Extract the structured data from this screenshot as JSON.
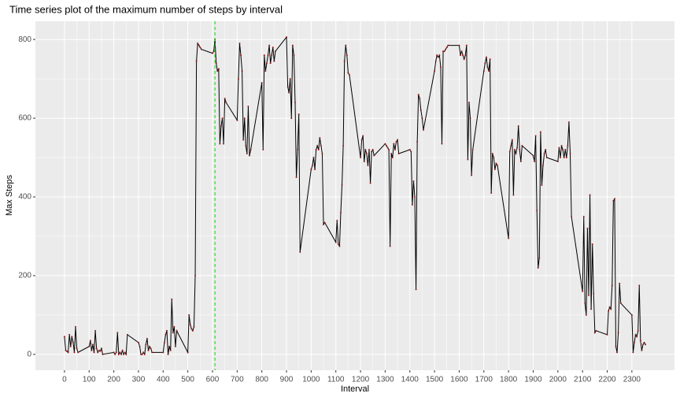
{
  "chart_data": {
    "type": "line",
    "title": "Time series plot of the maximum number of steps by interval",
    "x_label": "Interval",
    "y_label": "Max Steps",
    "x": [
      0,
      5,
      10,
      15,
      20,
      25,
      30,
      35,
      40,
      45,
      50,
      55,
      100,
      105,
      110,
      115,
      120,
      125,
      130,
      135,
      140,
      145,
      150,
      155,
      200,
      205,
      210,
      215,
      220,
      225,
      230,
      235,
      240,
      245,
      250,
      255,
      300,
      305,
      310,
      315,
      320,
      325,
      330,
      335,
      340,
      345,
      350,
      355,
      400,
      405,
      410,
      415,
      420,
      425,
      430,
      435,
      440,
      445,
      450,
      455,
      500,
      505,
      510,
      515,
      520,
      525,
      530,
      535,
      540,
      545,
      550,
      555,
      600,
      605,
      610,
      615,
      620,
      625,
      630,
      635,
      640,
      645,
      650,
      655,
      700,
      705,
      710,
      715,
      720,
      725,
      730,
      735,
      740,
      745,
      750,
      755,
      800,
      805,
      810,
      815,
      820,
      825,
      830,
      835,
      840,
      845,
      850,
      855,
      900,
      905,
      910,
      915,
      920,
      925,
      930,
      935,
      940,
      945,
      950,
      955,
      1000,
      1005,
      1010,
      1015,
      1020,
      1025,
      1030,
      1035,
      1040,
      1045,
      1050,
      1055,
      1100,
      1105,
      1110,
      1115,
      1120,
      1125,
      1130,
      1135,
      1140,
      1145,
      1150,
      1155,
      1200,
      1205,
      1210,
      1215,
      1220,
      1225,
      1230,
      1235,
      1240,
      1245,
      1250,
      1255,
      1300,
      1305,
      1310,
      1315,
      1320,
      1325,
      1330,
      1335,
      1340,
      1345,
      1350,
      1355,
      1400,
      1405,
      1410,
      1415,
      1420,
      1425,
      1430,
      1435,
      1440,
      1445,
      1450,
      1455,
      1500,
      1505,
      1510,
      1515,
      1520,
      1525,
      1530,
      1535,
      1540,
      1545,
      1550,
      1555,
      1600,
      1605,
      1610,
      1615,
      1620,
      1625,
      1630,
      1635,
      1640,
      1645,
      1650,
      1655,
      1700,
      1705,
      1710,
      1715,
      1720,
      1725,
      1730,
      1735,
      1740,
      1745,
      1750,
      1755,
      1800,
      1805,
      1810,
      1815,
      1820,
      1825,
      1830,
      1835,
      1840,
      1845,
      1850,
      1855,
      1900,
      1905,
      1910,
      1915,
      1920,
      1925,
      1930,
      1935,
      1940,
      1945,
      1950,
      1955,
      2000,
      2005,
      2010,
      2015,
      2020,
      2025,
      2030,
      2035,
      2040,
      2045,
      2050,
      2055,
      2100,
      2105,
      2110,
      2115,
      2120,
      2125,
      2130,
      2135,
      2140,
      2145,
      2150,
      2155,
      2200,
      2205,
      2210,
      2215,
      2220,
      2225,
      2230,
      2235,
      2240,
      2245,
      2250,
      2255,
      2300,
      2305,
      2310,
      2315,
      2320,
      2325,
      2330,
      2335,
      2340,
      2345,
      2350,
      2355
    ],
    "values": [
      45,
      10,
      8,
      5,
      50,
      20,
      45,
      30,
      5,
      70,
      15,
      5,
      20,
      35,
      10,
      25,
      5,
      60,
      15,
      5,
      10,
      8,
      15,
      0,
      5,
      0,
      5,
      55,
      0,
      5,
      0,
      10,
      0,
      5,
      0,
      50,
      30,
      20,
      0,
      0,
      5,
      0,
      25,
      40,
      10,
      20,
      15,
      5,
      5,
      30,
      50,
      60,
      0,
      20,
      10,
      140,
      55,
      70,
      20,
      60,
      5,
      100,
      75,
      65,
      60,
      70,
      200,
      745,
      790,
      785,
      780,
      775,
      765,
      770,
      800,
      740,
      720,
      725,
      535,
      580,
      600,
      535,
      650,
      640,
      595,
      700,
      790,
      760,
      720,
      545,
      600,
      530,
      510,
      630,
      505,
      520,
      690,
      520,
      760,
      720,
      740,
      760,
      785,
      740,
      760,
      780,
      745,
      770,
      806,
      680,
      665,
      700,
      600,
      785,
      760,
      640,
      450,
      520,
      610,
      260,
      470,
      480,
      500,
      470,
      520,
      530,
      520,
      550,
      530,
      510,
      330,
      335,
      285,
      340,
      280,
      275,
      360,
      430,
      530,
      745,
      785,
      760,
      715,
      710,
      500,
      545,
      555,
      490,
      520,
      510,
      480,
      520,
      435,
      515,
      520,
      505,
      535,
      530,
      525,
      520,
      275,
      510,
      500,
      535,
      520,
      540,
      545,
      510,
      520,
      515,
      380,
      440,
      400,
      165,
      540,
      660,
      650,
      620,
      600,
      570,
      720,
      745,
      760,
      755,
      760,
      730,
      535,
      770,
      770,
      775,
      780,
      785,
      785,
      760,
      770,
      760,
      750,
      760,
      785,
      495,
      640,
      600,
      455,
      520,
      720,
      740,
      755,
      730,
      720,
      750,
      410,
      510,
      500,
      470,
      485,
      480,
      295,
      515,
      530,
      545,
      405,
      520,
      510,
      525,
      580,
      520,
      490,
      530,
      505,
      490,
      555,
      365,
      220,
      245,
      565,
      430,
      480,
      510,
      520,
      500,
      490,
      525,
      500,
      530,
      520,
      500,
      520,
      500,
      530,
      590,
      510,
      350,
      160,
      350,
      130,
      100,
      320,
      150,
      405,
      115,
      280,
      155,
      55,
      60,
      50,
      110,
      120,
      115,
      175,
      390,
      395,
      20,
      5,
      55,
      180,
      130,
      100,
      5,
      30,
      50,
      45,
      60,
      175,
      35,
      10,
      25,
      30,
      25
    ],
    "color": "#000000",
    "point_color": "#8b1a1a",
    "vline": 610,
    "vline_color": "#00dd00",
    "xlim": [
      -117.75,
      2472.75
    ],
    "ylim": [
      -40.3,
      846.3
    ],
    "xticks": [
      0,
      100,
      200,
      300,
      400,
      500,
      600,
      700,
      800,
      900,
      1000,
      1100,
      1200,
      1300,
      1400,
      1500,
      1600,
      1700,
      1800,
      1900,
      2000,
      2100,
      2200,
      2300
    ],
    "yticks": [
      0,
      200,
      400,
      600,
      800
    ],
    "grid": true,
    "panel_color": "#ebebeb"
  }
}
